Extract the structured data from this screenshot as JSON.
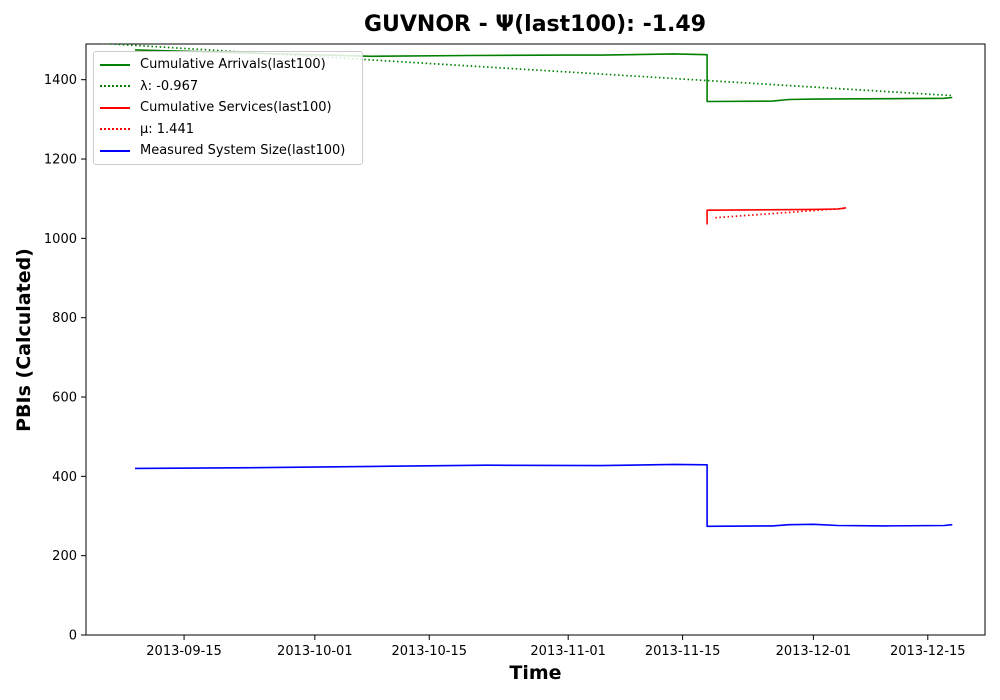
{
  "chart_data": {
    "type": "line",
    "title": "GUVNOR -  Ψ(last100): -1.49",
    "xlabel": "Time",
    "ylabel": "PBIs (Calculated)",
    "xlim": [
      "2013-09-03",
      "2013-12-22"
    ],
    "ylim": [
      0,
      1490
    ],
    "x_ticks": [
      "2013-09-15",
      "2013-10-01",
      "2013-10-15",
      "2013-11-01",
      "2013-11-15",
      "2013-12-01",
      "2013-12-15"
    ],
    "y_ticks": [
      0,
      200,
      400,
      600,
      800,
      1000,
      1200,
      1400
    ],
    "grid": false,
    "legend_position": "top-left",
    "series": [
      {
        "name": "Cumulative Arrivals(last100)",
        "color": "#008000",
        "style": "solid",
        "points": [
          [
            "2013-09-09",
            1475
          ],
          [
            "2013-09-25",
            1466
          ],
          [
            "2013-10-08",
            1459
          ],
          [
            "2013-10-20",
            1461
          ],
          [
            "2013-11-01",
            1462
          ],
          [
            "2013-11-05",
            1462
          ],
          [
            "2013-11-14",
            1465
          ],
          [
            "2013-11-18",
            1463
          ],
          [
            "2013-11-18",
            1345
          ],
          [
            "2013-11-26",
            1346
          ],
          [
            "2013-11-28",
            1350
          ],
          [
            "2013-12-01",
            1351
          ],
          [
            "2013-12-10",
            1352
          ],
          [
            "2013-12-17",
            1353
          ],
          [
            "2013-12-18",
            1355
          ]
        ]
      },
      {
        "name": "λ: -0.967",
        "color": "#008000",
        "style": "dotted",
        "points": [
          [
            "2013-09-03",
            1494
          ],
          [
            "2013-12-18",
            1360
          ]
        ]
      },
      {
        "name": "Cumulative Services(last100)",
        "color": "#ff0000",
        "style": "solid",
        "points": [
          [
            "2013-11-18",
            1035
          ],
          [
            "2013-11-18",
            1071
          ],
          [
            "2013-11-25",
            1072
          ],
          [
            "2013-12-01",
            1073
          ],
          [
            "2013-12-04",
            1074
          ],
          [
            "2013-12-05",
            1077
          ]
        ]
      },
      {
        "name": "μ: 1.441",
        "color": "#ff0000",
        "style": "dotted",
        "points": [
          [
            "2013-11-19",
            1052
          ],
          [
            "2013-12-05",
            1076
          ]
        ]
      },
      {
        "name": "Measured System Size(last100)",
        "color": "#0000ff",
        "style": "solid",
        "points": [
          [
            "2013-09-09",
            420
          ],
          [
            "2013-09-25",
            422
          ],
          [
            "2013-10-08",
            425
          ],
          [
            "2013-10-22",
            428
          ],
          [
            "2013-11-05",
            427
          ],
          [
            "2013-11-14",
            430
          ],
          [
            "2013-11-18",
            429
          ],
          [
            "2013-11-18",
            274
          ],
          [
            "2013-11-26",
            275
          ],
          [
            "2013-11-28",
            278
          ],
          [
            "2013-12-01",
            279
          ],
          [
            "2013-12-04",
            276
          ],
          [
            "2013-12-10",
            275
          ],
          [
            "2013-12-17",
            276
          ],
          [
            "2013-12-18",
            278
          ]
        ]
      }
    ]
  }
}
